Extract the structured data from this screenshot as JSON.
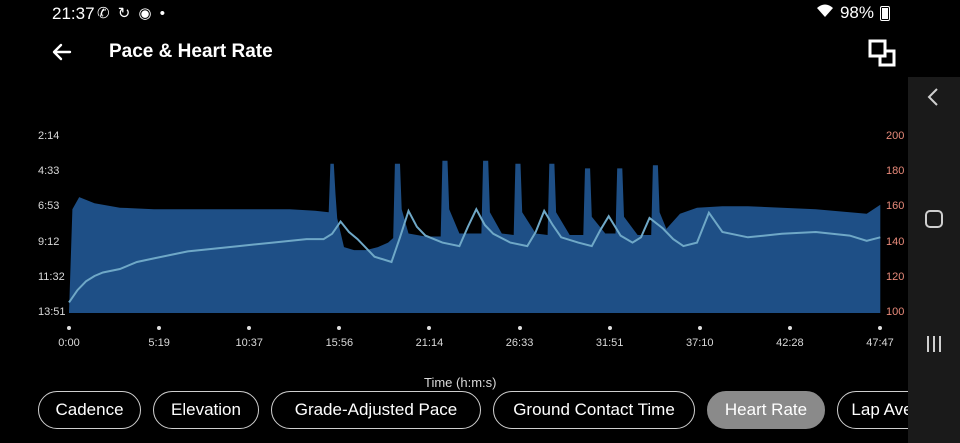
{
  "status_bar": {
    "time": "21:37",
    "icons_left": "✆ ↻ ◉ •",
    "battery": "98%"
  },
  "header": {
    "title": "Pace & Heart Rate"
  },
  "chart_data": [
    {
      "type": "area",
      "y_axis_left_labels": [
        "2:14",
        "4:33",
        "6:53",
        "9:12",
        "11:32",
        "13:51"
      ],
      "y_axis_right_labels": [
        "200",
        "180",
        "160",
        "140",
        "120",
        "100"
      ],
      "x_tick_labels": [
        "0:00",
        "5:19",
        "10:37",
        "15:56",
        "21:14",
        "26:33",
        "31:51",
        "37:10",
        "42:28",
        "47:47"
      ],
      "xlabel": "Time (h:m:s)",
      "ylim_left": [
        13.85,
        2.23
      ],
      "ylim_right": [
        100,
        200
      ],
      "series": [
        {
          "name": "Pace",
          "color": "#1e4f86",
          "x": [
            0,
            0.2,
            0.6,
            1.5,
            3,
            5,
            7,
            9,
            11,
            13,
            14.5,
            15.3,
            15.4,
            15.6,
            15.7,
            15.8,
            16.2,
            16.8,
            17.5,
            18.2,
            18.8,
            19.1,
            19.2,
            19.5,
            19.6,
            20,
            21,
            21.9,
            22,
            22.3,
            22.4,
            23,
            23.8,
            24.3,
            24.4,
            24.7,
            24.8,
            25.5,
            26.2,
            26.3,
            26.6,
            26.7,
            27.5,
            28.2,
            28.3,
            28.6,
            28.7,
            29.5,
            30.3,
            30.4,
            30.7,
            30.8,
            31.6,
            32.2,
            32.3,
            32.6,
            32.7,
            33.5,
            34.3,
            34.4,
            34.7,
            34.8,
            35.2,
            36,
            37,
            38.5,
            40,
            42,
            44,
            46,
            47,
            47.8
          ],
          "values": [
            13.85,
            7.0,
            6.2,
            6.6,
            6.9,
            7.0,
            7.0,
            7.0,
            7.0,
            7.0,
            7.1,
            7.2,
            4.0,
            4.0,
            6.0,
            7.6,
            9.5,
            9.7,
            9.7,
            9.5,
            9.2,
            8.9,
            4.0,
            4.0,
            7.0,
            8.6,
            8.8,
            8.8,
            3.8,
            3.8,
            7.0,
            8.6,
            8.6,
            8.6,
            3.8,
            3.8,
            7.2,
            8.6,
            8.7,
            4.0,
            4.0,
            7.2,
            8.6,
            8.7,
            4.0,
            4.0,
            7.2,
            8.7,
            8.7,
            4.3,
            4.3,
            7.5,
            8.6,
            8.6,
            4.3,
            4.3,
            7.5,
            8.7,
            8.7,
            4.1,
            4.1,
            7.2,
            8.3,
            7.3,
            6.9,
            6.8,
            6.8,
            6.9,
            7.0,
            7.2,
            7.3,
            6.7
          ]
        },
        {
          "name": "Heart Rate",
          "color": "#6fa8c7",
          "x": [
            0,
            0.5,
            1,
            1.5,
            2,
            3,
            4,
            5,
            6,
            7,
            8,
            9,
            10,
            12,
            14,
            15,
            15.5,
            16,
            16.5,
            17,
            18,
            19,
            19.5,
            20,
            20.5,
            21,
            22,
            23,
            23.5,
            24,
            24.5,
            25,
            26,
            27,
            27.5,
            28,
            28.5,
            29,
            30,
            30.8,
            31.3,
            31.8,
            32.5,
            33.2,
            33.7,
            34.2,
            35,
            35.6,
            36.2,
            37,
            37.7,
            38.5,
            40,
            42,
            44,
            46,
            47,
            47.8
          ],
          "values": [
            106,
            113,
            118,
            121,
            123,
            125,
            129,
            131,
            133,
            135,
            136,
            137,
            138,
            140,
            142,
            142,
            145,
            152,
            146,
            142,
            132,
            129,
            143,
            158,
            149,
            144,
            140,
            138,
            149,
            159,
            150,
            145,
            140,
            138,
            146,
            158,
            150,
            143,
            140,
            138,
            147,
            155,
            144,
            140,
            143,
            154,
            148,
            142,
            138,
            140,
            157,
            146,
            143,
            145,
            146,
            144,
            141,
            143
          ]
        }
      ]
    }
  ],
  "chips": [
    "Cadence",
    "Elevation",
    "Grade-Adjusted Pace",
    "Ground Contact Time",
    "Heart Rate",
    "Lap Ave"
  ],
  "active_chip": "Heart Rate"
}
